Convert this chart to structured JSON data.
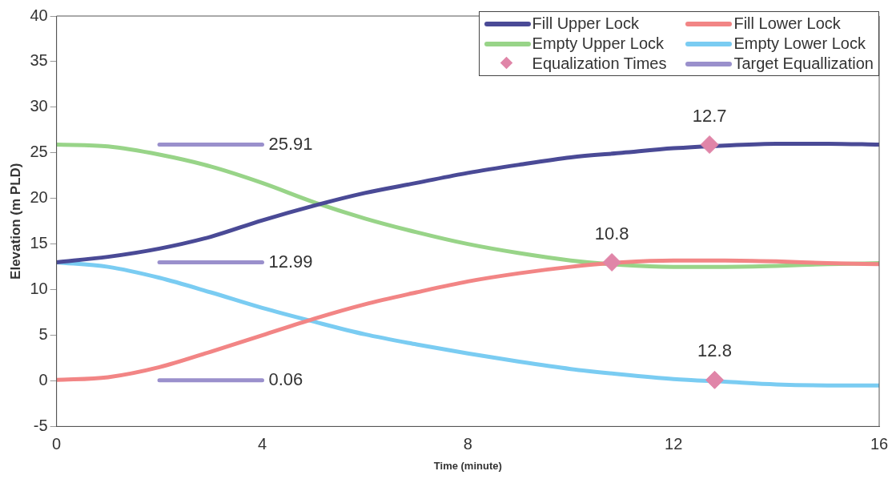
{
  "chart_data": {
    "type": "line",
    "xlabel": "Time (minute)",
    "ylabel": "Elevation (m PLD)",
    "xlim": [
      0,
      16
    ],
    "xticks": [
      0,
      4,
      8,
      12,
      16
    ],
    "ylim": [
      -5,
      40
    ],
    "yticks": [
      -5,
      0,
      5,
      10,
      15,
      20,
      25,
      30,
      35,
      40
    ],
    "grid": false,
    "legend": "top right",
    "marker": "none",
    "line_style": "solid",
    "x": [
      0,
      1,
      2,
      3,
      4,
      5,
      6,
      7,
      8,
      9,
      10,
      11,
      12,
      13,
      14,
      15,
      16
    ],
    "annotations": [
      {
        "text": "12.7",
        "x": 12.7,
        "y": 25.9
      },
      {
        "text": "10.8",
        "x": 10.8,
        "y": 13.0
      },
      {
        "text": "12.8",
        "x": 12.8,
        "y": 0.1
      }
    ],
    "series": [
      {
        "name": "Fill Upper Lock",
        "color": "#4a4a96",
        "values": [
          13.0,
          13.6,
          14.5,
          15.8,
          17.6,
          19.2,
          20.6,
          21.7,
          22.8,
          23.7,
          24.5,
          25.0,
          25.5,
          25.8,
          26.0,
          26.0,
          25.9
        ]
      },
      {
        "name": "Fill Lower Lock",
        "color": "#f28585",
        "values": [
          0.1,
          0.4,
          1.5,
          3.2,
          5.0,
          6.8,
          8.4,
          9.7,
          10.9,
          11.8,
          12.5,
          13.0,
          13.2,
          13.2,
          13.1,
          12.9,
          12.8
        ]
      },
      {
        "name": "Empty Upper Lock",
        "color": "#98d488",
        "values": [
          25.9,
          25.7,
          24.8,
          23.5,
          21.7,
          19.6,
          17.8,
          16.3,
          15.0,
          14.0,
          13.2,
          12.7,
          12.5,
          12.5,
          12.6,
          12.8,
          12.9
        ]
      },
      {
        "name": "Empty Lower Lock",
        "color": "#7accf2",
        "values": [
          13.0,
          12.5,
          11.3,
          9.7,
          8.0,
          6.5,
          5.1,
          4.0,
          3.0,
          2.1,
          1.3,
          0.7,
          0.2,
          -0.1,
          -0.4,
          -0.5,
          -0.5
        ]
      },
      {
        "name": "Equalization Times",
        "type": "scatter",
        "marker": "diamond",
        "color": "#e085a8",
        "x": [
          12.7,
          10.8,
          12.8
        ],
        "values": [
          25.9,
          13.0,
          0.1
        ]
      },
      {
        "name": "Target Equallization",
        "color": "#9a90cc",
        "x": [
          2,
          4
        ],
        "values": [
          25.91,
          25.91
        ],
        "value_labels": [
          null,
          "25.91"
        ]
      },
      {
        "color": "#9a90cc",
        "x": [
          2,
          4
        ],
        "values": [
          12.99,
          12.99
        ],
        "value_labels": [
          null,
          "12.99"
        ]
      },
      {
        "color": "#9a90cc",
        "x": [
          2,
          4
        ],
        "values": [
          0.06,
          0.06
        ],
        "value_labels": [
          null,
          "0.06"
        ]
      }
    ]
  }
}
